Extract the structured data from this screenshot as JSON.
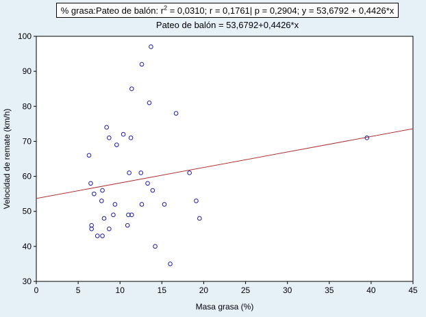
{
  "header": {
    "stats": {
      "prefix": "% grasa:Pateo de balón:  r",
      "sup": "2",
      "rest": " = 0,0310;  r = 0,1761| p = 0,2904;  y = 53,6792 + 0,4426*x"
    },
    "equation": "Pateo de balón = 53,6792+0,4426*x"
  },
  "chart_data": {
    "type": "scatter",
    "xlabel": "Masa grasa (%)",
    "ylabel": "Velocidad de remate (km/h)",
    "xlim": [
      0,
      45
    ],
    "ylim": [
      30,
      100
    ],
    "xticks": [
      0,
      5,
      10,
      15,
      20,
      25,
      30,
      35,
      40,
      45
    ],
    "yticks": [
      30,
      40,
      50,
      60,
      70,
      80,
      90,
      100
    ],
    "grid": false,
    "fit_line": {
      "intercept": 53.6792,
      "slope": 0.4426,
      "color": "#b03030"
    },
    "marker_color": "#1a1aa8",
    "points": [
      [
        13.7,
        97
      ],
      [
        12.6,
        92
      ],
      [
        11.4,
        85
      ],
      [
        13.5,
        81
      ],
      [
        16.7,
        78
      ],
      [
        8.4,
        74
      ],
      [
        10.4,
        72
      ],
      [
        8.7,
        71
      ],
      [
        11.3,
        71
      ],
      [
        9.6,
        69
      ],
      [
        6.3,
        66
      ],
      [
        11.1,
        61
      ],
      [
        12.5,
        61
      ],
      [
        18.3,
        61
      ],
      [
        6.5,
        58
      ],
      [
        13.3,
        58
      ],
      [
        7.9,
        56
      ],
      [
        13.9,
        56
      ],
      [
        6.9,
        55
      ],
      [
        7.8,
        53
      ],
      [
        19.1,
        53
      ],
      [
        9.4,
        52
      ],
      [
        12.6,
        52
      ],
      [
        15.3,
        52
      ],
      [
        11.0,
        49
      ],
      [
        11.4,
        49
      ],
      [
        9.2,
        49
      ],
      [
        8.1,
        48
      ],
      [
        19.5,
        48
      ],
      [
        6.6,
        46
      ],
      [
        10.9,
        46
      ],
      [
        6.6,
        45
      ],
      [
        8.7,
        45
      ],
      [
        7.3,
        43
      ],
      [
        7.9,
        43
      ],
      [
        14.2,
        40
      ],
      [
        16.0,
        35
      ],
      [
        39.5,
        71
      ]
    ]
  }
}
